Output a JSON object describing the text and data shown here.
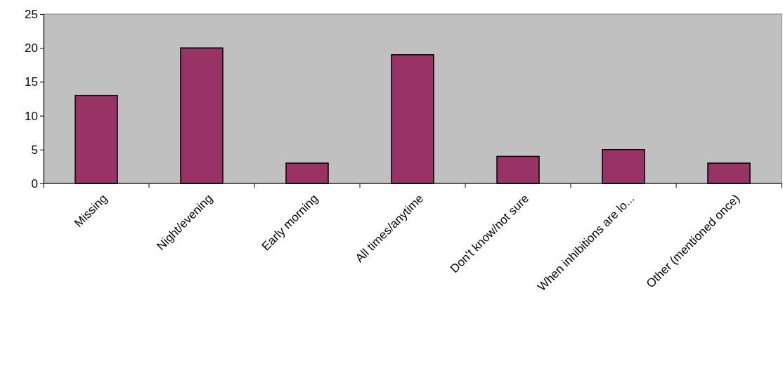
{
  "chart_data": {
    "type": "bar",
    "categories": [
      "Missing",
      "Night/evening",
      "Early morning",
      "All times/anytime",
      "Don't know/not sure",
      "When inhibitions are lo...",
      "Other (mentioned once)"
    ],
    "values": [
      13,
      20,
      3,
      19,
      4,
      5,
      3
    ],
    "color": "#993366",
    "ylim": [
      0,
      25
    ],
    "yticks": [
      0,
      5,
      10,
      15,
      20,
      25
    ]
  }
}
